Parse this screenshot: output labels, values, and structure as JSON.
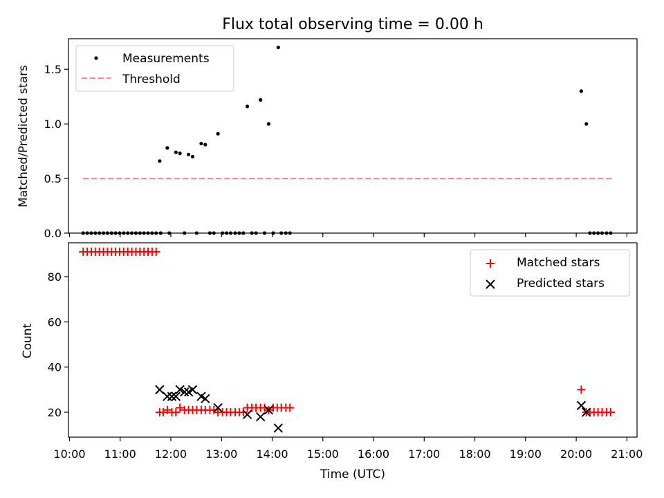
{
  "colors": {
    "threshold": "#ff7f7f",
    "measurements": "#000000",
    "matched": "#ff0000",
    "predicted": "#000000"
  },
  "chart_data": [
    {
      "type": "scatter",
      "title": "Flux total observing time = 0.00 h",
      "xlabel": "",
      "ylabel": "Matched/Predicted stars",
      "xlim": [
        9.98,
        21.2
      ],
      "ylim": [
        0.0,
        1.78
      ],
      "yticks": [
        0.0,
        0.5,
        1.0,
        1.5
      ],
      "ytick_labels": [
        "0.0",
        "0.5",
        "1.0",
        "1.5"
      ],
      "grid": false,
      "legend_position": "top-left",
      "series": [
        {
          "name": "Measurements",
          "marker": "dot",
          "points": [
            [
              10.27,
              0
            ],
            [
              10.35,
              0
            ],
            [
              10.43,
              0
            ],
            [
              10.51,
              0
            ],
            [
              10.59,
              0
            ],
            [
              10.67,
              0
            ],
            [
              10.75,
              0
            ],
            [
              10.83,
              0
            ],
            [
              10.91,
              0
            ],
            [
              10.99,
              0
            ],
            [
              11.07,
              0
            ],
            [
              11.15,
              0
            ],
            [
              11.23,
              0
            ],
            [
              11.31,
              0
            ],
            [
              11.39,
              0
            ],
            [
              11.47,
              0
            ],
            [
              11.55,
              0
            ],
            [
              11.63,
              0
            ],
            [
              11.71,
              0
            ],
            [
              11.78,
              0.66
            ],
            [
              11.8,
              0
            ],
            [
              11.93,
              0.78
            ],
            [
              11.97,
              0
            ],
            [
              12.1,
              0.74
            ],
            [
              12.18,
              0.73
            ],
            [
              12.27,
              0
            ],
            [
              12.35,
              0.72
            ],
            [
              12.43,
              0.7
            ],
            [
              12.51,
              0
            ],
            [
              12.6,
              0.82
            ],
            [
              12.68,
              0.81
            ],
            [
              12.77,
              0
            ],
            [
              12.85,
              0
            ],
            [
              12.93,
              0.91
            ],
            [
              13.02,
              0
            ],
            [
              13.1,
              0
            ],
            [
              13.18,
              0
            ],
            [
              13.27,
              0
            ],
            [
              13.35,
              0
            ],
            [
              13.43,
              0
            ],
            [
              13.51,
              1.16
            ],
            [
              13.6,
              0
            ],
            [
              13.68,
              0
            ],
            [
              13.77,
              1.22
            ],
            [
              13.85,
              0
            ],
            [
              13.93,
              1.0
            ],
            [
              14.02,
              0
            ],
            [
              14.12,
              1.7
            ],
            [
              14.18,
              0
            ],
            [
              14.27,
              0
            ],
            [
              14.35,
              0
            ],
            [
              20.1,
              1.3
            ],
            [
              20.2,
              1.0
            ],
            [
              20.27,
              0
            ],
            [
              20.35,
              0
            ],
            [
              20.43,
              0
            ],
            [
              20.51,
              0
            ],
            [
              20.6,
              0
            ],
            [
              20.68,
              0
            ]
          ]
        },
        {
          "name": "Threshold",
          "style": "dashed-line",
          "points": [
            [
              10.27,
              0.5
            ],
            [
              20.72,
              0.5
            ]
          ]
        }
      ]
    },
    {
      "type": "scatter",
      "title": "",
      "xlabel": "Time (UTC)",
      "ylabel": "Count",
      "xlim": [
        9.98,
        21.2
      ],
      "ylim": [
        9.0,
        95.0
      ],
      "yticks": [
        20,
        40,
        60,
        80
      ],
      "ytick_labels": [
        "20",
        "40",
        "60",
        "80"
      ],
      "xticks": [
        10,
        11,
        12,
        13,
        14,
        15,
        16,
        17,
        18,
        19,
        20,
        21
      ],
      "xtick_labels": [
        "10:00",
        "11:00",
        "12:00",
        "13:00",
        "14:00",
        "15:00",
        "16:00",
        "17:00",
        "18:00",
        "19:00",
        "20:00",
        "21:00"
      ],
      "grid": false,
      "legend_position": "top-right",
      "series": [
        {
          "name": "Matched stars",
          "marker": "plus",
          "points": [
            [
              10.27,
              91
            ],
            [
              10.35,
              91
            ],
            [
              10.43,
              91
            ],
            [
              10.51,
              91
            ],
            [
              10.59,
              91
            ],
            [
              10.67,
              91
            ],
            [
              10.75,
              91
            ],
            [
              10.83,
              91
            ],
            [
              10.91,
              91
            ],
            [
              10.99,
              91
            ],
            [
              11.07,
              91
            ],
            [
              11.15,
              91
            ],
            [
              11.23,
              91
            ],
            [
              11.31,
              91
            ],
            [
              11.39,
              91
            ],
            [
              11.47,
              91
            ],
            [
              11.55,
              91
            ],
            [
              11.63,
              91
            ],
            [
              11.71,
              91
            ],
            [
              11.78,
              20
            ],
            [
              11.85,
              20
            ],
            [
              11.93,
              21
            ],
            [
              12.02,
              20
            ],
            [
              12.1,
              20
            ],
            [
              12.18,
              22
            ],
            [
              12.27,
              21
            ],
            [
              12.35,
              21
            ],
            [
              12.43,
              21
            ],
            [
              12.51,
              21
            ],
            [
              12.6,
              21
            ],
            [
              12.68,
              21
            ],
            [
              12.77,
              21
            ],
            [
              12.85,
              21
            ],
            [
              12.93,
              20
            ],
            [
              13.02,
              20
            ],
            [
              13.1,
              20
            ],
            [
              13.18,
              20
            ],
            [
              13.27,
              20
            ],
            [
              13.35,
              20
            ],
            [
              13.43,
              20
            ],
            [
              13.51,
              22
            ],
            [
              13.6,
              22
            ],
            [
              13.68,
              22
            ],
            [
              13.77,
              22
            ],
            [
              13.85,
              22
            ],
            [
              13.93,
              21
            ],
            [
              14.02,
              22
            ],
            [
              14.1,
              22
            ],
            [
              14.18,
              22
            ],
            [
              14.27,
              22
            ],
            [
              14.35,
              22
            ],
            [
              20.1,
              30
            ],
            [
              20.2,
              20
            ],
            [
              20.27,
              20
            ],
            [
              20.35,
              20
            ],
            [
              20.43,
              20
            ],
            [
              20.51,
              20
            ],
            [
              20.6,
              20
            ],
            [
              20.68,
              20
            ]
          ]
        },
        {
          "name": "Predicted stars",
          "marker": "x",
          "points": [
            [
              11.78,
              30
            ],
            [
              11.93,
              27
            ],
            [
              12.02,
              27
            ],
            [
              12.1,
              27
            ],
            [
              12.18,
              30
            ],
            [
              12.27,
              29
            ],
            [
              12.35,
              29
            ],
            [
              12.43,
              30
            ],
            [
              12.6,
              27
            ],
            [
              12.68,
              26
            ],
            [
              12.93,
              22
            ],
            [
              13.51,
              19
            ],
            [
              13.77,
              18
            ],
            [
              13.93,
              21
            ],
            [
              14.12,
              13
            ],
            [
              20.1,
              23
            ],
            [
              20.2,
              20
            ]
          ]
        }
      ]
    }
  ]
}
